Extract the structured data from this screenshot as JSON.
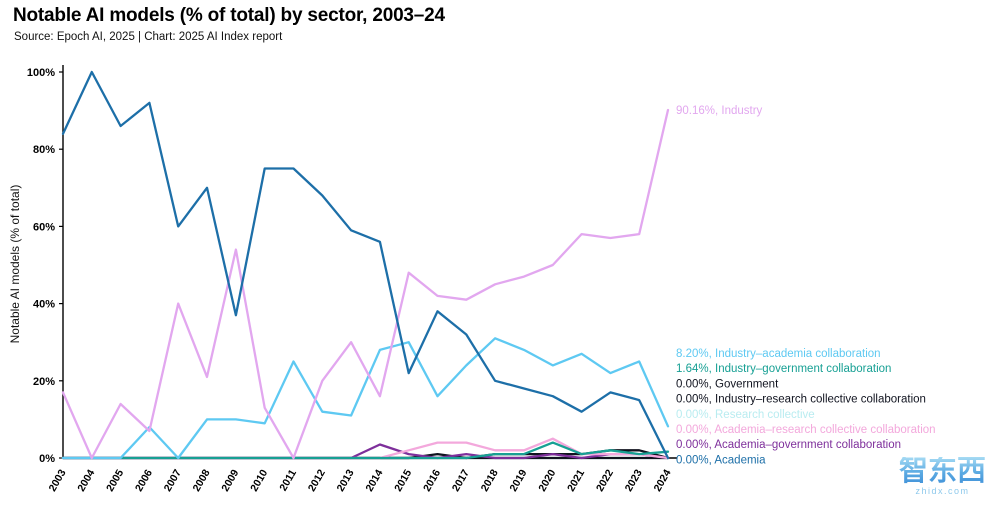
{
  "header": {
    "title": "Notable AI models (% of total) by sector, 2003–24",
    "subtitle": "Source: Epoch AI, 2025 | Chart: 2025 AI Index report"
  },
  "watermark": {
    "line1": "智东西",
    "line2": "zhidx.com"
  },
  "chart_data": {
    "type": "line",
    "title": "Notable AI models (% of total) by sector, 2003–24",
    "xlabel": "",
    "ylabel": "Notable AI models (% of total)",
    "ylim": [
      0,
      100
    ],
    "yticks": [
      0,
      20,
      40,
      60,
      80,
      100
    ],
    "ytick_labels": [
      "0%",
      "20%",
      "40%",
      "60%",
      "80%",
      "100%"
    ],
    "grid": false,
    "legend_position": "right",
    "x": [
      2003,
      2004,
      2005,
      2006,
      2007,
      2008,
      2009,
      2010,
      2011,
      2012,
      2013,
      2014,
      2015,
      2016,
      2017,
      2018,
      2019,
      2020,
      2021,
      2022,
      2023,
      2024
    ],
    "series": [
      {
        "name": "Industry",
        "color": "#e2a7ef",
        "end_label": "90.16%, Industry",
        "values": [
          17,
          0,
          14,
          7,
          40,
          21,
          54,
          13,
          0,
          20,
          30,
          16,
          48,
          42,
          41,
          45,
          47,
          50,
          58,
          57,
          58,
          90.16
        ]
      },
      {
        "name": "Industry–academia collaboration",
        "color": "#5ec9f2",
        "end_label": "8.20%, Industry–academia collaboration",
        "values": [
          0,
          0,
          0,
          8,
          0,
          10,
          10,
          9,
          25,
          12,
          11,
          28,
          30,
          16,
          24,
          31,
          28,
          24,
          27,
          22,
          25,
          8.2
        ]
      },
      {
        "name": "Industry–government collaboration",
        "color": "#17a094",
        "end_label": "1.64%, Industry–government collaboration",
        "values": [
          0,
          0,
          0,
          0,
          0,
          0,
          0,
          0,
          0,
          0,
          0,
          0,
          0,
          0,
          0,
          1,
          1,
          4,
          1,
          2,
          1,
          1.64
        ]
      },
      {
        "name": "Government",
        "color": "#10131f",
        "end_label": "0.00%, Government",
        "values": [
          0,
          0,
          0,
          0,
          0,
          0,
          0,
          0,
          0,
          0,
          0,
          0,
          0,
          1,
          0,
          1,
          1,
          1,
          1,
          2,
          2,
          0
        ]
      },
      {
        "name": "Industry–research collective collaboration",
        "color": "#10131f",
        "end_label": "0.00%, Industry–research collective collaboration",
        "values": [
          0,
          0,
          0,
          0,
          0,
          0,
          0,
          0,
          0,
          0,
          0,
          0,
          0,
          0,
          0,
          0,
          0,
          0,
          0,
          0,
          0,
          0
        ]
      },
      {
        "name": "Research collective",
        "color": "#b9ecf0",
        "end_label": "0.00%, Research collective",
        "values": [
          0,
          0,
          0,
          0,
          0,
          0,
          0,
          0,
          0,
          0,
          0,
          0,
          0,
          0,
          0,
          0,
          0,
          0,
          0,
          0,
          0,
          0
        ]
      },
      {
        "name": "Academia–research collective collaboration",
        "color": "#f3a8dc",
        "end_label": "0.00%, Academia–research collective collaboration",
        "values": [
          0,
          0,
          0,
          0,
          0,
          0,
          0,
          0,
          0,
          0,
          0,
          0,
          2,
          4,
          4,
          2,
          2,
          5,
          1,
          1,
          1,
          0
        ]
      },
      {
        "name": "Academia–government collaboration",
        "color": "#7e2f9b",
        "end_label": "0.00%, Academia–government collaboration",
        "values": [
          0,
          0,
          0,
          0,
          0,
          0,
          0,
          0,
          0,
          0,
          0,
          3.5,
          1,
          0,
          1,
          0,
          0,
          1,
          0,
          1,
          1,
          0
        ]
      },
      {
        "name": "Academia",
        "color": "#1d6fa8",
        "end_label": "0.00%, Academia",
        "values": [
          84,
          100,
          86,
          92,
          60,
          70,
          37,
          75,
          75,
          68,
          59,
          56,
          22,
          38,
          32,
          20,
          18,
          16,
          12,
          17,
          15,
          0
        ]
      }
    ]
  }
}
